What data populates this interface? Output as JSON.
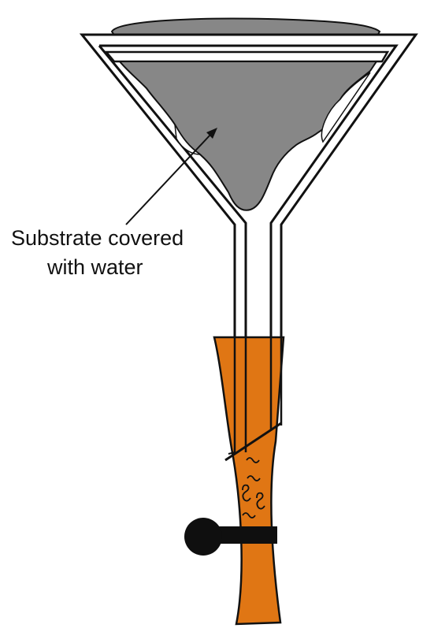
{
  "label": {
    "line1": "Substrate covered",
    "line2": "with water"
  },
  "colors": {
    "substrate": "#878787",
    "funnel_outline": "#111111",
    "tube": "#e07614",
    "clamp": "#0f0f0f",
    "background": "#ffffff"
  },
  "icons": {
    "larvae": "squiggle-marks",
    "clamp": "pinch-clamp"
  }
}
